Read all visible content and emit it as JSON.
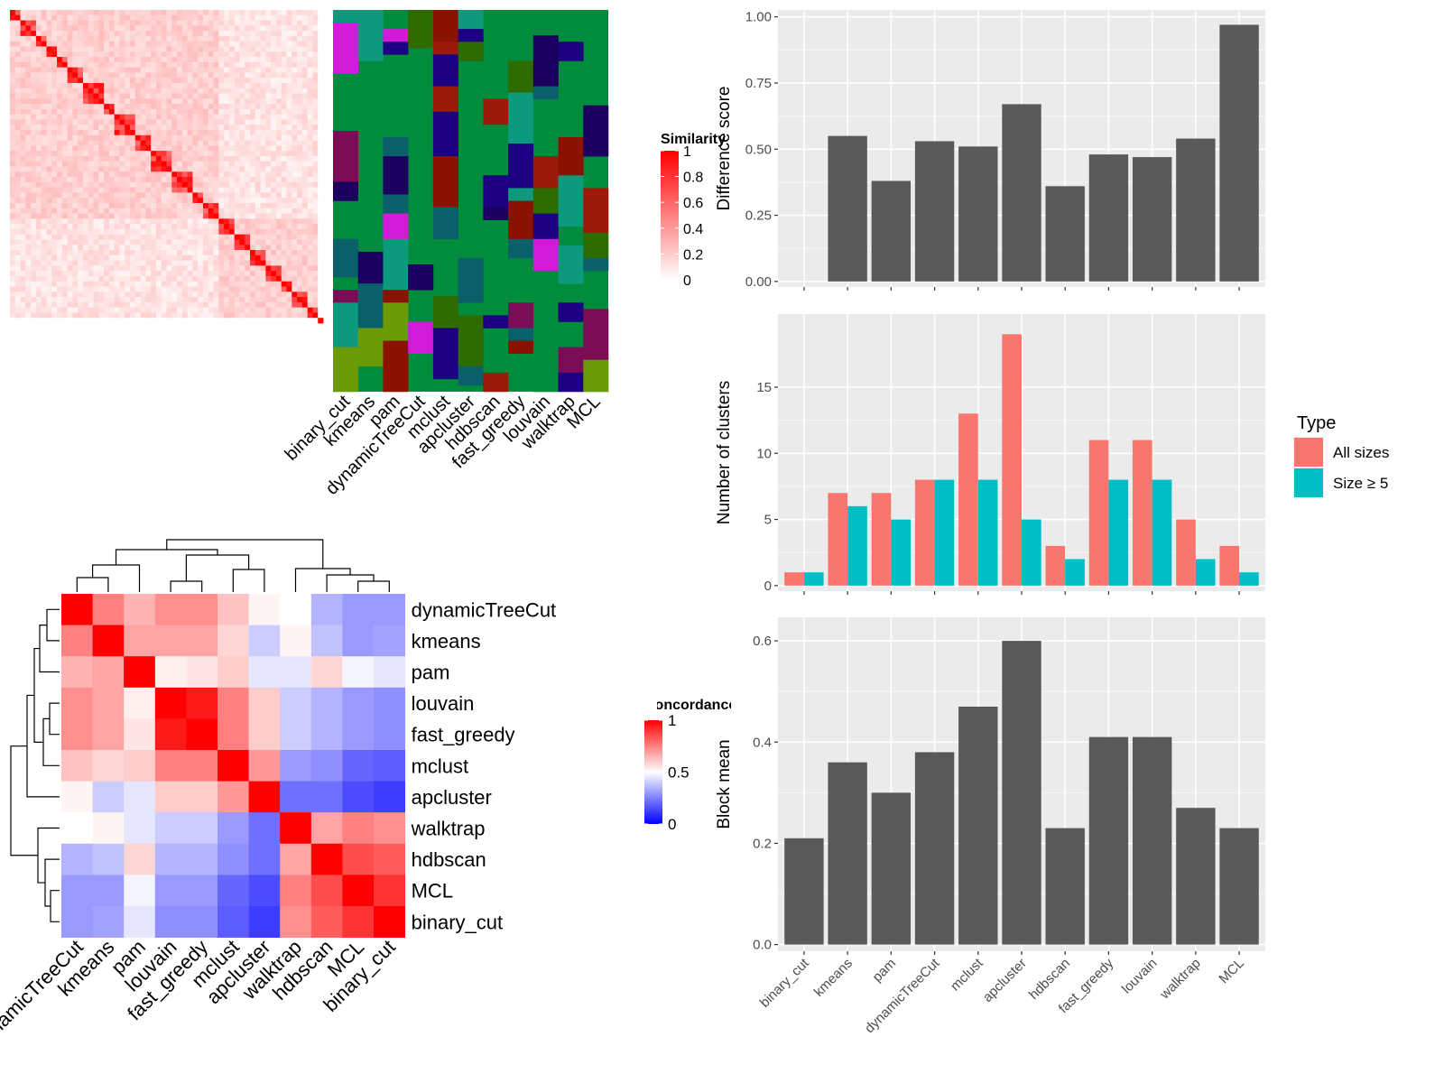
{
  "similarity_panel": {
    "legend_title": "Similarity",
    "legend_ticks": [
      "1",
      "0.8",
      "0.6",
      "0.4",
      "0.2",
      "0"
    ],
    "methods": [
      "binary_cut",
      "kmeans",
      "pam",
      "dynamicTreeCut",
      "mclust",
      "apcluster",
      "hdbscan",
      "fast_greedy",
      "louvain",
      "walktrap",
      "MCL"
    ]
  },
  "concordance_panel": {
    "legend_title": "Concordance",
    "legend_ticks": [
      "1",
      "0.5",
      "0"
    ]
  },
  "chart_data": [
    {
      "type": "heatmap",
      "title": "",
      "rows": [
        "dynamicTreeCut",
        "kmeans",
        "pam",
        "louvain",
        "fast_greedy",
        "mclust",
        "apcluster",
        "walktrap",
        "hdbscan",
        "MCL",
        "binary_cut"
      ],
      "columns": [
        "dynamicTreeCut",
        "kmeans",
        "pam",
        "louvain",
        "fast_greedy",
        "mclust",
        "apcluster",
        "walktrap",
        "hdbscan",
        "MCL",
        "binary_cut"
      ],
      "values": [
        [
          1,
          0.75,
          0.65,
          0.72,
          0.72,
          0.62,
          0.52,
          0.5,
          0.35,
          0.3,
          0.3
        ],
        [
          0.75,
          1,
          0.68,
          0.68,
          0.68,
          0.58,
          0.4,
          0.52,
          0.38,
          0.3,
          0.32
        ],
        [
          0.65,
          0.68,
          1,
          0.53,
          0.55,
          0.6,
          0.45,
          0.45,
          0.58,
          0.48,
          0.45
        ],
        [
          0.72,
          0.68,
          0.53,
          1,
          0.95,
          0.75,
          0.6,
          0.4,
          0.35,
          0.3,
          0.28
        ],
        [
          0.72,
          0.68,
          0.55,
          0.95,
          1,
          0.75,
          0.6,
          0.4,
          0.35,
          0.3,
          0.28
        ],
        [
          0.62,
          0.58,
          0.6,
          0.75,
          0.75,
          1,
          0.7,
          0.3,
          0.28,
          0.2,
          0.18
        ],
        [
          0.52,
          0.4,
          0.45,
          0.6,
          0.6,
          0.7,
          1,
          0.22,
          0.22,
          0.15,
          0.12
        ],
        [
          0.5,
          0.52,
          0.45,
          0.4,
          0.4,
          0.3,
          0.22,
          1,
          0.68,
          0.75,
          0.72
        ],
        [
          0.35,
          0.38,
          0.58,
          0.35,
          0.35,
          0.28,
          0.22,
          0.68,
          1,
          0.85,
          0.82
        ],
        [
          0.3,
          0.3,
          0.48,
          0.3,
          0.3,
          0.2,
          0.15,
          0.75,
          0.85,
          1,
          0.9
        ],
        [
          0.3,
          0.32,
          0.45,
          0.28,
          0.28,
          0.18,
          0.12,
          0.72,
          0.82,
          0.9,
          1
        ]
      ],
      "color_range": [
        0,
        1
      ],
      "colors": {
        "low": "#0000ff",
        "mid": "#ffffff",
        "high": "#ff0000"
      },
      "legend_placement": "right"
    },
    {
      "type": "bar",
      "categories": [
        "binary_cut",
        "kmeans",
        "pam",
        "dynamicTreeCut",
        "mclust",
        "apcluster",
        "hdbscan",
        "fast_greedy",
        "louvain",
        "walktrap",
        "MCL"
      ],
      "values": [
        0,
        0.55,
        0.38,
        0.53,
        0.51,
        0.67,
        0.36,
        0.48,
        0.47,
        0.54,
        0.97
      ],
      "xlabel": "",
      "ylabel": "Difference score",
      "ylim": [
        0,
        1.0
      ],
      "yticks": [
        0.0,
        0.25,
        0.5,
        0.75,
        1.0
      ],
      "ytick_labels": [
        "0.00",
        "0.25",
        "0.50",
        "0.75",
        "1.00"
      ],
      "grid": true,
      "colors": {
        "bar": "#595959",
        "panel": "#ebebeb"
      }
    },
    {
      "type": "bar",
      "categories": [
        "binary_cut",
        "kmeans",
        "pam",
        "dynamicTreeCut",
        "mclust",
        "apcluster",
        "hdbscan",
        "fast_greedy",
        "louvain",
        "walktrap",
        "MCL"
      ],
      "series": [
        {
          "name": "All sizes",
          "values": [
            1,
            7,
            7,
            8,
            13,
            19,
            3,
            11,
            11,
            5,
            3
          ],
          "color": "#f8766d"
        },
        {
          "name": "Size ≥ 5",
          "values": [
            1,
            6,
            5,
            8,
            8,
            5,
            2,
            8,
            8,
            2,
            1
          ],
          "color": "#00bfc4"
        }
      ],
      "xlabel": "",
      "ylabel": "Number of clusters",
      "ylim": [
        0,
        20
      ],
      "yticks": [
        0,
        5,
        10,
        15
      ],
      "ytick_labels": [
        "0",
        "5",
        "10",
        "15"
      ],
      "legend_title": "Type",
      "legend_placement": "right",
      "grid": true
    },
    {
      "type": "bar",
      "categories": [
        "binary_cut",
        "kmeans",
        "pam",
        "dynamicTreeCut",
        "mclust",
        "apcluster",
        "hdbscan",
        "fast_greedy",
        "louvain",
        "walktrap",
        "MCL"
      ],
      "values": [
        0.21,
        0.36,
        0.3,
        0.38,
        0.47,
        0.6,
        0.23,
        0.41,
        0.41,
        0.27,
        0.23
      ],
      "xlabel": "",
      "ylabel": "Block mean",
      "ylim": [
        0,
        0.63
      ],
      "yticks": [
        0.0,
        0.2,
        0.4,
        0.6
      ],
      "ytick_labels": [
        "0.0",
        "0.2",
        "0.4",
        "0.6"
      ],
      "grid": true,
      "colors": {
        "bar": "#595959",
        "panel": "#ebebeb"
      }
    }
  ]
}
